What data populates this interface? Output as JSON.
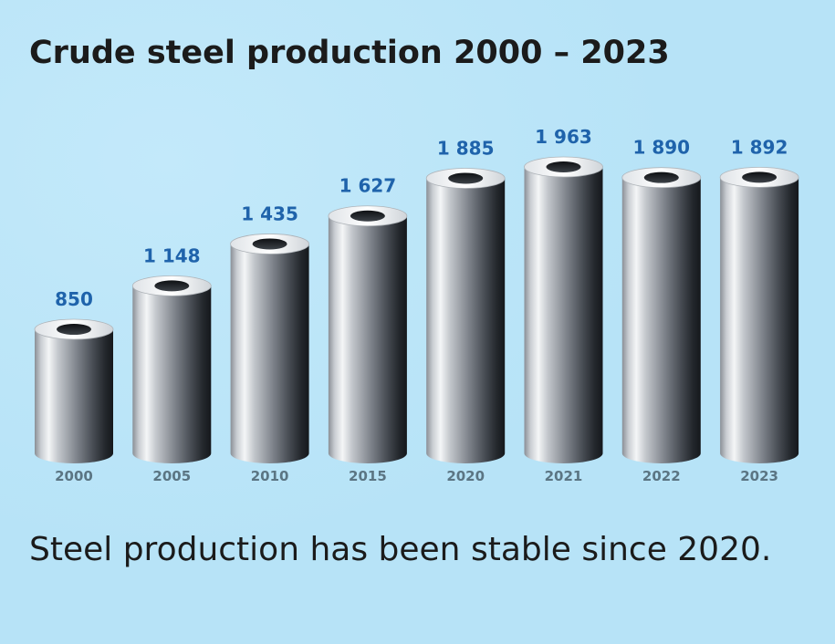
{
  "colors": {
    "background": "#b7e3f7",
    "value_label": "#1f63ab",
    "year_label": "#5b7583",
    "text": "#1b1b1b"
  },
  "chart_data": {
    "type": "bar",
    "title": "Crude steel production 2000 – 2023",
    "caption": "Steel production has been stable since 2020.",
    "categories": [
      "2000",
      "2005",
      "2010",
      "2015",
      "2020",
      "2021",
      "2022",
      "2023"
    ],
    "values": [
      850,
      1148,
      1435,
      1627,
      1885,
      1963,
      1890,
      1892
    ],
    "value_labels": [
      "850",
      "1 148",
      "1 435",
      "1 627",
      "1 885",
      "1 963",
      "1 890",
      "1 892"
    ],
    "ylim": [
      0,
      1963
    ],
    "grid": false,
    "legend": "none"
  }
}
